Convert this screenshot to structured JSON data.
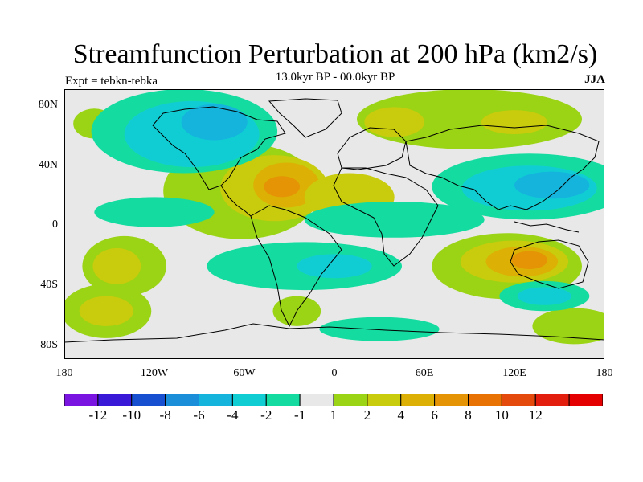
{
  "figure": {
    "title": "Streamfunction Perturbation at 200 hPa (km2/s)",
    "subtitle": "13.0kyr BP - 00.0kyr BP",
    "left_label": "Expt = tebkn-tebka",
    "right_label": "JJA"
  },
  "axes": {
    "lat_labels": [
      "80N",
      "40N",
      "0",
      "40S",
      "80S"
    ],
    "lon_labels": [
      "180",
      "120W",
      "60W",
      "0",
      "60E",
      "120E",
      "180"
    ]
  },
  "colorbar": {
    "colors": [
      "#7a14e0",
      "#3a18d8",
      "#1650d0",
      "#1a8ed8",
      "#14b4dc",
      "#10cdd4",
      "#14dca0",
      "#e8e8e8",
      "#9ad414",
      "#c8cc0c",
      "#dcb004",
      "#e49404",
      "#e87204",
      "#e44a0c",
      "#e41e0e",
      "#e40000"
    ],
    "labels": [
      "-12",
      "-10",
      "-8",
      "-6",
      "-4",
      "-2",
      "-1",
      "1",
      "2",
      "4",
      "6",
      "8",
      "10",
      "12"
    ]
  },
  "map": {
    "background": "#e8e8e8",
    "regions": [
      {
        "level": "positive-2",
        "color": "#9ad414",
        "lon": -62,
        "lat": 22,
        "rlon": 52,
        "rlat": 32
      },
      {
        "level": "positive-4",
        "color": "#c8cc0c",
        "lon": -40,
        "lat": 24,
        "rlon": 36,
        "rlat": 22
      },
      {
        "level": "positive-6",
        "color": "#dcb004",
        "lon": -32,
        "lat": 26,
        "rlon": 22,
        "rlat": 15
      },
      {
        "level": "positive-8",
        "color": "#e49404",
        "lon": -35,
        "lat": 25,
        "rlon": 12,
        "rlat": 7
      },
      {
        "level": "positive-4",
        "color": "#c8cc0c",
        "lon": 10,
        "lat": 18,
        "rlon": 30,
        "rlat": 16
      },
      {
        "level": "positive-2",
        "color": "#9ad414",
        "lon": 90,
        "lat": 70,
        "rlon": 75,
        "rlat": 20
      },
      {
        "level": "positive-4",
        "color": "#c8cc0c",
        "lon": 40,
        "lat": 68,
        "rlon": 20,
        "rlat": 10
      },
      {
        "level": "positive-4",
        "color": "#c8cc0c",
        "lon": 120,
        "lat": 68,
        "rlon": 22,
        "rlat": 8
      },
      {
        "level": "positive-2",
        "color": "#9ad414",
        "lon": -160,
        "lat": 67,
        "rlon": 14,
        "rlat": 10
      },
      {
        "level": "positive-2",
        "color": "#9ad414",
        "lon": -140,
        "lat": -28,
        "rlon": 28,
        "rlat": 20
      },
      {
        "level": "positive-4",
        "color": "#c8cc0c",
        "lon": -145,
        "lat": -28,
        "rlon": 16,
        "rlat": 12
      },
      {
        "level": "positive-2",
        "color": "#9ad414",
        "lon": -152,
        "lat": -58,
        "rlon": 30,
        "rlat": 18
      },
      {
        "level": "positive-4",
        "color": "#c8cc0c",
        "lon": -152,
        "lat": -58,
        "rlon": 18,
        "rlat": 10
      },
      {
        "level": "positive-2",
        "color": "#9ad414",
        "lon": -25,
        "lat": -58,
        "rlon": 16,
        "rlat": 10
      },
      {
        "level": "positive-2",
        "color": "#9ad414",
        "lon": 115,
        "lat": -28,
        "rlon": 50,
        "rlat": 22
      },
      {
        "level": "positive-4",
        "color": "#c8cc0c",
        "lon": 120,
        "lat": -25,
        "rlon": 36,
        "rlat": 14
      },
      {
        "level": "positive-6",
        "color": "#dcb004",
        "lon": 125,
        "lat": -25,
        "rlon": 24,
        "rlat": 10
      },
      {
        "level": "positive-8",
        "color": "#e49404",
        "lon": 130,
        "lat": -24,
        "rlon": 12,
        "rlat": 6
      },
      {
        "level": "positive-2",
        "color": "#9ad414",
        "lon": 160,
        "lat": -68,
        "rlon": 28,
        "rlat": 12
      },
      {
        "level": "negative-1",
        "color": "#14dca0",
        "lon": -100,
        "lat": 62,
        "rlon": 62,
        "rlat": 28
      },
      {
        "level": "negative-2",
        "color": "#10cdd4",
        "lon": -95,
        "lat": 60,
        "rlon": 45,
        "rlat": 22
      },
      {
        "level": "negative-4",
        "color": "#14b4dc",
        "lon": -80,
        "lat": 68,
        "rlon": 22,
        "rlat": 12
      },
      {
        "level": "negative-1",
        "color": "#14dca0",
        "lon": -120,
        "lat": 8,
        "rlon": 40,
        "rlat": 10
      },
      {
        "level": "negative-1",
        "color": "#14dca0",
        "lon": 40,
        "lat": 3,
        "rlon": 60,
        "rlat": 12
      },
      {
        "level": "negative-1",
        "color": "#14dca0",
        "lon": 130,
        "lat": 25,
        "rlon": 65,
        "rlat": 22
      },
      {
        "level": "negative-2",
        "color": "#10cdd4",
        "lon": 130,
        "lat": 24,
        "rlon": 45,
        "rlat": 15
      },
      {
        "level": "negative-4",
        "color": "#14b4dc",
        "lon": 145,
        "lat": 26,
        "rlon": 25,
        "rlat": 9
      },
      {
        "level": "negative-1",
        "color": "#14dca0",
        "lon": -20,
        "lat": -28,
        "rlon": 65,
        "rlat": 16
      },
      {
        "level": "negative-2",
        "color": "#10cdd4",
        "lon": 0,
        "lat": -28,
        "rlon": 25,
        "rlat": 8
      },
      {
        "level": "negative-1",
        "color": "#14dca0",
        "lon": 140,
        "lat": -48,
        "rlon": 30,
        "rlat": 10
      },
      {
        "level": "negative-2",
        "color": "#10cdd4",
        "lon": 140,
        "lat": -48,
        "rlon": 18,
        "rlat": 6
      },
      {
        "level": "negative-1",
        "color": "#14dca0",
        "lon": 30,
        "lat": -70,
        "rlon": 40,
        "rlat": 8
      }
    ]
  }
}
